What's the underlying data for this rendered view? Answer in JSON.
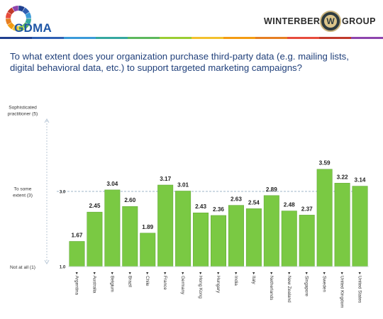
{
  "header": {
    "left_logo_text": "GDMA",
    "right_logo_left_word": "WINTERBERRY",
    "right_logo_badge": "W",
    "right_logo_right_word": "GROUP"
  },
  "question": "To what extent does your organization purchase third-party data (e.g. mailing lists, digital behavioral data, etc.) to support targeted marketing campaigns?",
  "colors": {
    "bar": "#7ac943",
    "bar_stroke": "#5aa22f",
    "reference_line": "#9fb6c9",
    "axis_line": "#b8c7d6",
    "question_text": "#1f3f7a",
    "rainbow": [
      "#1f3f8f",
      "#2f5fb3",
      "#3a9ad9",
      "#35a7a0",
      "#5cb85c",
      "#9acd32",
      "#f2c12e",
      "#f39c12",
      "#e67e22",
      "#e74c3c",
      "#c0392b",
      "#8e44ad"
    ]
  },
  "chart_data": {
    "type": "bar",
    "categories": [
      "Argentina",
      "Australia",
      "Belgium",
      "Brazil",
      "Chile",
      "France",
      "Germany",
      "Hong Kong",
      "Hungary",
      "India",
      "Italy",
      "Netherlands",
      "New Zealand",
      "Singapore",
      "Sweden",
      "United Kingdom",
      "United States"
    ],
    "values": [
      1.67,
      2.45,
      3.04,
      2.6,
      1.89,
      3.17,
      3.01,
      2.43,
      2.36,
      2.63,
      2.54,
      2.89,
      2.48,
      2.37,
      3.59,
      3.22,
      3.14
    ],
    "value_labels": [
      "1.67",
      "2.45",
      "3.04",
      "2.60",
      "1.89",
      "3.17",
      "3.01",
      "2.43",
      "2.36",
      "2.63",
      "2.54",
      "2.89",
      "2.48",
      "2.37",
      "3.59",
      "3.22",
      "3.14"
    ],
    "ylim": [
      1.0,
      5.0
    ],
    "y_axis_labels": [
      {
        "value": 5.0,
        "lines": [
          "Sophisticated",
          "practitioner (5)"
        ]
      },
      {
        "value": 3.0,
        "lines": [
          "To some",
          "extent (3)"
        ]
      },
      {
        "value": 1.0,
        "lines": [
          "Not at all (1)"
        ]
      }
    ],
    "y_ticks": [
      {
        "value": 3.0,
        "label": "3.0"
      },
      {
        "value": 1.0,
        "label": "1.0"
      }
    ],
    "reference_line": 3.0,
    "category_marker": "▸"
  }
}
